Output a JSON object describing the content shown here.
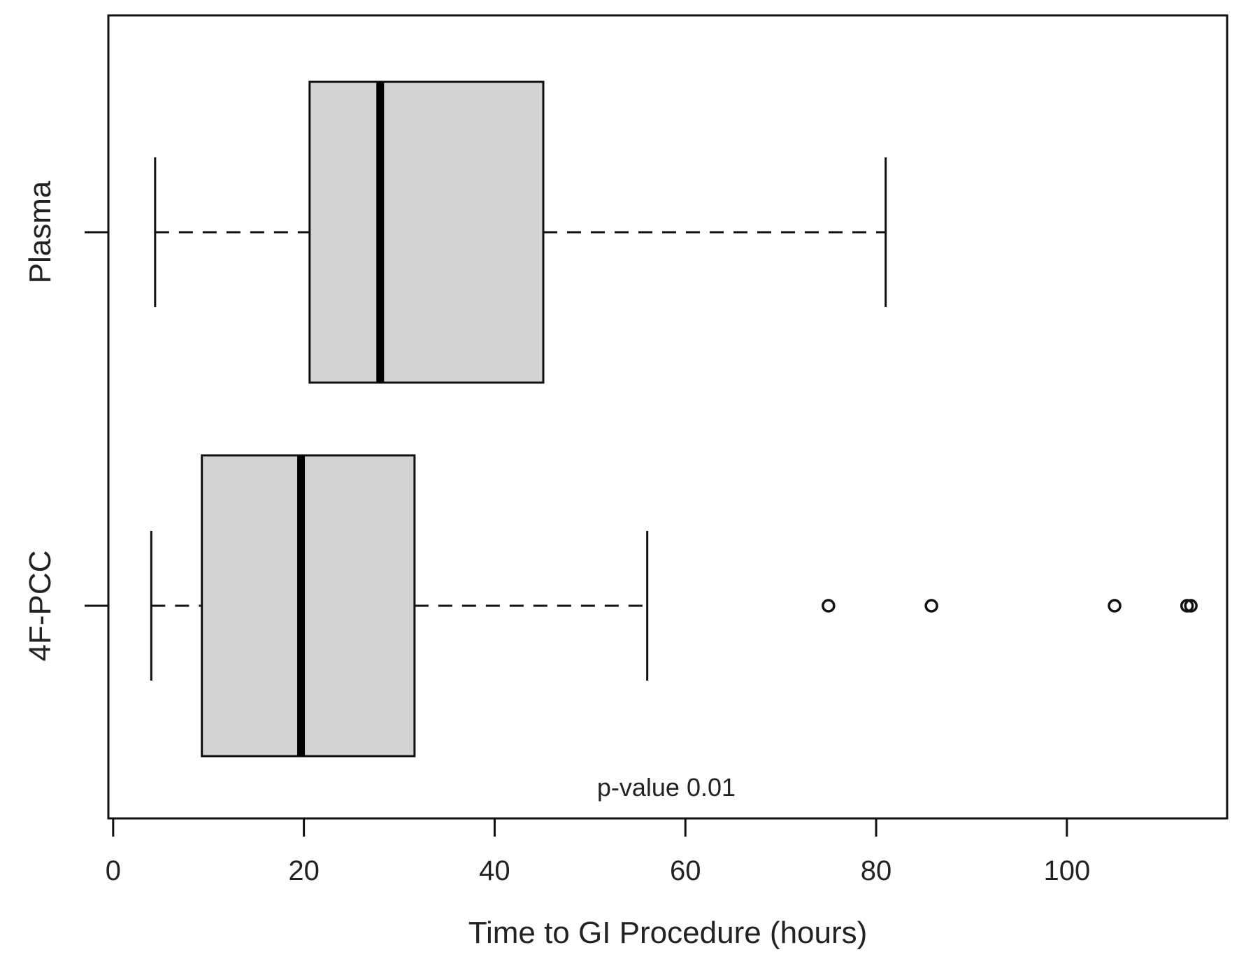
{
  "chart_data": {
    "type": "boxplot",
    "orientation": "horizontal",
    "title": "",
    "xlabel": "Time to GI Procedure (hours)",
    "ylabel": "",
    "xlim": [
      -0.5,
      116.8
    ],
    "x_ticks": [
      0,
      20,
      40,
      60,
      80,
      100
    ],
    "x_tick_labels": [
      "0",
      "20",
      "40",
      "60",
      "80",
      "100"
    ],
    "grid": false,
    "legend": "none",
    "categories": [
      "4F-PCC",
      "Plasma"
    ],
    "series": [
      {
        "name": "4F-PCC",
        "whisker_low": 4,
        "q1": 9.3,
        "median": 19.7,
        "q3": 31.6,
        "whisker_high": 56,
        "outliers": [
          75,
          85.8,
          105,
          112.6,
          113
        ]
      },
      {
        "name": "Plasma",
        "whisker_low": 4.4,
        "q1": 20.6,
        "median": 28,
        "q3": 45.1,
        "whisker_high": 81,
        "outliers": []
      }
    ],
    "annotation": "p-value 0.01",
    "annotation_x": 58,
    "box_fill": "#d3d3d3",
    "line_color": "#111111"
  }
}
